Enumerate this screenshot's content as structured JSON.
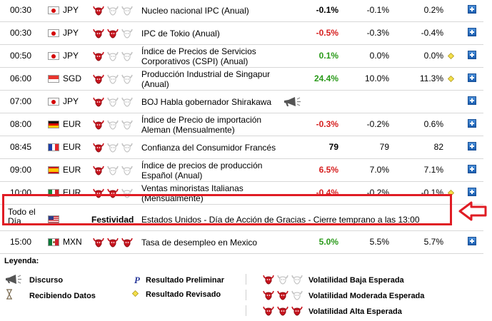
{
  "colors": {
    "bearish_red": "#d62020",
    "bullish_green": "#2a9a1a",
    "highlight_border": "#e01c24"
  },
  "rows": [
    {
      "time": "00:30",
      "currency": "JPY",
      "flag": "japan-flag",
      "volatility": 1,
      "event": "Nucleo nacional IPC (Anual)",
      "actual": "-0.1%",
      "actual_color": "black",
      "forecast": "-0.1%",
      "previous": "0.2%",
      "revised": false
    },
    {
      "time": "00:30",
      "currency": "JPY",
      "flag": "japan-flag",
      "volatility": 2,
      "event": "IPC de Tokio (Anual)",
      "actual": "-0.5%",
      "actual_color": "red",
      "forecast": "-0.3%",
      "previous": "-0.4%",
      "revised": false
    },
    {
      "time": "00:50",
      "currency": "JPY",
      "flag": "japan-flag",
      "volatility": 1,
      "event": "Índice de Precios de Servicios Corporativos (CSPI) (Anual)",
      "actual": "0.1%",
      "actual_color": "green",
      "forecast": "0.0%",
      "previous": "0.0%",
      "revised": true
    },
    {
      "time": "06:00",
      "currency": "SGD",
      "flag": "singapore-flag",
      "volatility": 1,
      "event": "Producción Industrial de Singapur (Anual)",
      "actual": "24.4%",
      "actual_color": "green",
      "forecast": "10.0%",
      "previous": "11.3%",
      "revised": true
    },
    {
      "time": "07:00",
      "currency": "JPY",
      "flag": "japan-flag",
      "volatility": 1,
      "event": "BOJ Habla gobernador Shirakawa",
      "speech": true,
      "actual": "",
      "actual_color": "black",
      "forecast": "",
      "previous": "",
      "revised": false
    },
    {
      "time": "08:00",
      "currency": "EUR",
      "flag": "germany-flag",
      "volatility": 1,
      "event": "Índice de Precio de importación Aleman (Mensualmente)",
      "actual": "-0.3%",
      "actual_color": "red",
      "forecast": "-0.2%",
      "previous": "0.6%",
      "revised": false
    },
    {
      "time": "08:45",
      "currency": "EUR",
      "flag": "france-flag",
      "volatility": 1,
      "event": "Confianza del Consumidor Francés",
      "actual": "79",
      "actual_color": "black",
      "forecast": "79",
      "previous": "82",
      "revised": false
    },
    {
      "time": "09:00",
      "currency": "EUR",
      "flag": "spain-flag",
      "volatility": 1,
      "event": "Índice de precios de producción Español (Anual)",
      "actual": "6.5%",
      "actual_color": "red",
      "forecast": "7.0%",
      "previous": "7.1%",
      "revised": false
    },
    {
      "time": "10:00",
      "currency": "EUR",
      "flag": "italy-flag",
      "volatility": 2,
      "event": "Ventas minoristas Italianas (Mensualmente)",
      "actual": "-0.4%",
      "actual_color": "red",
      "forecast": "-0.2%",
      "previous": "-0.1%",
      "revised": true
    }
  ],
  "holiday": {
    "time": "Todo el Día",
    "label": "Festividad",
    "event": "Estados Unidos - Día de Acción de Gracias - Cierre temprano a las 13:00"
  },
  "last_row": {
    "time": "15:00",
    "currency": "MXN",
    "flag": "mexico-flag",
    "volatility": 3,
    "event": "Tasa de desempleo en Mexico",
    "actual": "5.0%",
    "actual_color": "green",
    "forecast": "5.5%",
    "previous": "5.7%"
  },
  "legend": {
    "title": "Leyenda:",
    "speech": "Discurso",
    "receiving": "Recibiendo Datos",
    "preliminary": "Resultado Preliminar",
    "preliminary_symbol": "P",
    "revised": "Resultado Revisado",
    "vol_low": "Volatilidad Baja Esperada",
    "vol_mid": "Volatilidad Moderada Esperada",
    "vol_high": "Volatilidad Alta Esperada"
  }
}
